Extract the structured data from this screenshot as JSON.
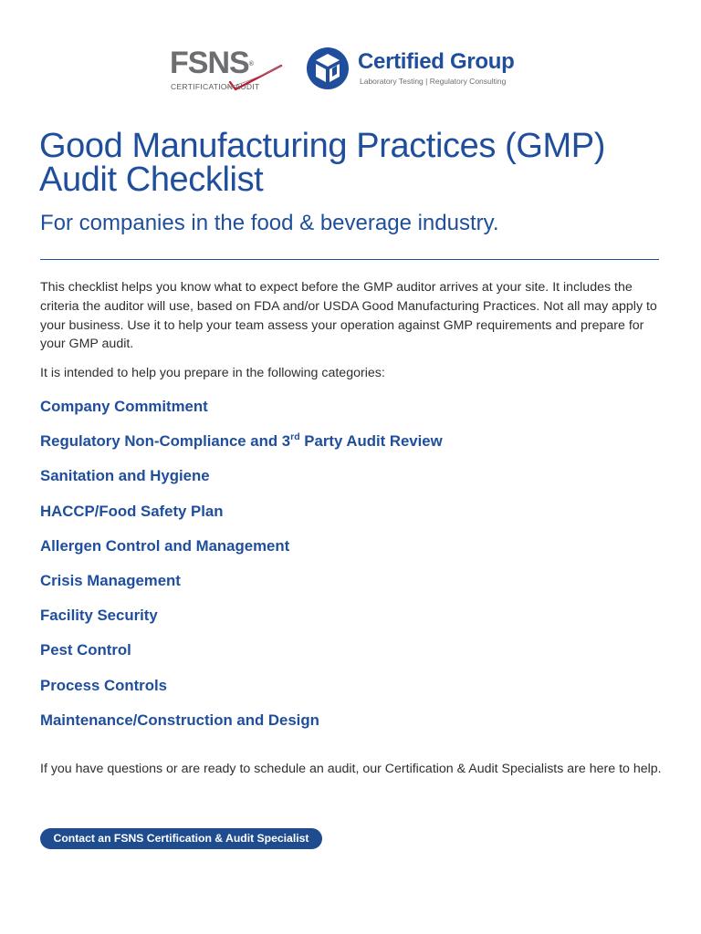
{
  "logos": {
    "fsns": {
      "name": "FSNS",
      "registered": "®",
      "subtitle": "CERTIFICATION AUDIT"
    },
    "certified_group": {
      "name": "Certified Group",
      "tagline": "Laboratory Testing | Regulatory Consulting"
    }
  },
  "header": {
    "title_line1": "Good Manufacturing Practices (GMP)",
    "title_line2": "Audit Checklist",
    "subtitle": "For companies in the food & beverage industry."
  },
  "body": {
    "intro": "This checklist helps you know what to expect before the GMP auditor arrives at your site. It includes the criteria the auditor will use, based on FDA and/or USDA Good Manufacturing Practices. Not all may apply to your business. Use it to help your team assess your operation against GMP requirements and prepare for your GMP audit.",
    "lead": "It is intended to help you prepare in the following categories:",
    "closing": "If you have questions or are ready to schedule an audit, our Certification & Audit Specialists are here to help."
  },
  "categories": {
    "item0": "Company Commitment",
    "item1_before": "Regulatory Non-Compliance and 3",
    "item1_sup": "rd",
    "item1_after": " Party Audit Review",
    "item2": "Sanitation and Hygiene",
    "item3": "HACCP/Food Safety Plan",
    "item4": "Allergen Control and Management",
    "item5": "Crisis Management",
    "item6": "Facility Security",
    "item7": "Pest Control",
    "item8": "Process Controls",
    "item9": "Maintenance/Construction and Design"
  },
  "cta": {
    "label": "Contact an FSNS Certification & Audit Specialist"
  },
  "colors": {
    "brand_blue": "#1f4e9c",
    "button_blue": "#1e4c8e",
    "fsns_gray": "#6d6e71",
    "check_red": "#c8102e"
  }
}
